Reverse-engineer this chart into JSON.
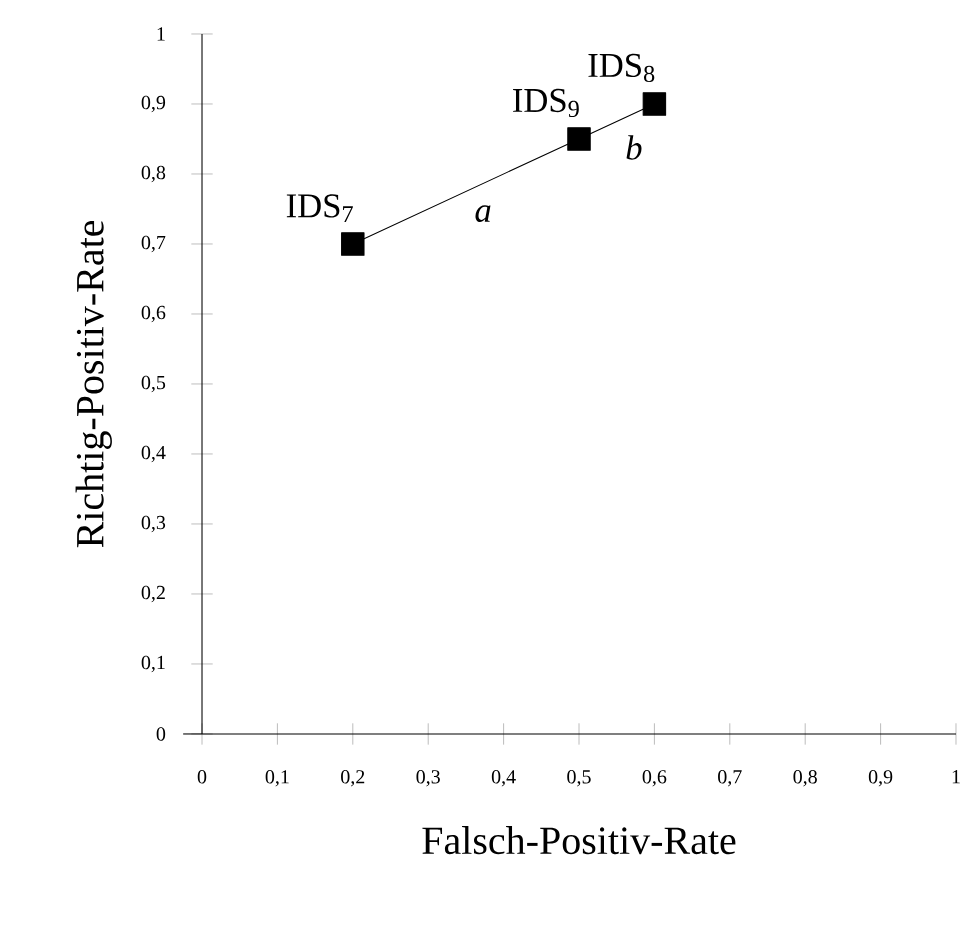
{
  "chart_data": {
    "type": "line",
    "xlabel": "Falsch-Positiv-Rate",
    "ylabel": "Richtig-Positiv-Rate",
    "x": [
      0.2,
      0.5,
      0.6
    ],
    "values": [
      0.7,
      0.85,
      0.9
    ],
    "color": "#000000",
    "marker": "square",
    "line_style": "solid",
    "xlim": [
      0,
      1
    ],
    "ylim": [
      0,
      1
    ],
    "xticks": [
      0,
      {
        "value": 0.1,
        "label": "0,1"
      },
      {
        "value": 0.2,
        "label": "0,2"
      },
      {
        "value": 0.3,
        "label": "0,3"
      },
      {
        "value": 0.4,
        "label": "0,4"
      },
      {
        "value": 0.5,
        "label": "0,5"
      },
      {
        "value": 0.6,
        "label": "0,6"
      },
      {
        "value": 0.7,
        "label": "0,7"
      },
      {
        "value": 0.8,
        "label": "0,8"
      },
      {
        "value": 0.9,
        "label": "0,9"
      },
      1
    ],
    "yticks": [
      0,
      {
        "value": 0.1,
        "label": "0,1"
      },
      {
        "value": 0.2,
        "label": "0,2"
      },
      {
        "value": 0.3,
        "label": "0,3"
      },
      {
        "value": 0.4,
        "label": "0,4"
      },
      {
        "value": 0.5,
        "label": "0,5"
      },
      {
        "value": 0.6,
        "label": "0,6"
      },
      {
        "value": 0.7,
        "label": "0,7"
      },
      {
        "value": 0.8,
        "label": "0,8"
      },
      {
        "value": 0.9,
        "label": "0,9"
      },
      1
    ],
    "annotations": [
      {
        "text": "IDS$_{7}$",
        "x": 0.2,
        "y": 0.7
      },
      {
        "text": "IDS$_{9}$",
        "x": 0.5,
        "y": 0.85
      },
      {
        "text": "IDS$_{8}$",
        "x": 0.6,
        "y": 0.9
      },
      {
        "text": "*a*",
        "x": 0.35,
        "y": 0.775
      },
      {
        "text": "*b*",
        "x": 0.55,
        "y": 0.875
      }
    ]
  }
}
